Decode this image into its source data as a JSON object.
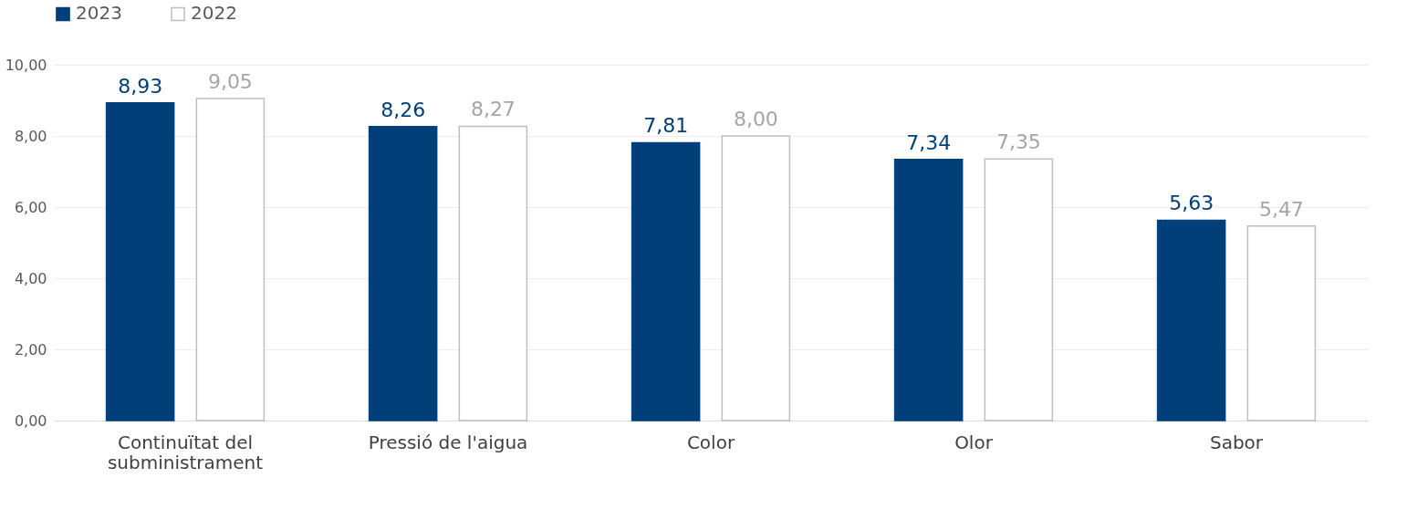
{
  "chart_data": {
    "type": "bar",
    "categories": [
      "Continuïtat del subministrament",
      "Pressió de l'aigua",
      "Color",
      "Olor",
      "Sabor"
    ],
    "series": [
      {
        "name": "2023",
        "color": "#003f7a",
        "values": [
          8.93,
          8.26,
          7.81,
          7.34,
          5.63
        ],
        "value_labels": [
          "8,93",
          "8,26",
          "7,81",
          "7,34",
          "5,63"
        ]
      },
      {
        "name": "2022",
        "color": "#ffffff",
        "values": [
          9.05,
          8.27,
          8.0,
          7.35,
          5.47
        ],
        "value_labels": [
          "9,05",
          "8,27",
          "8,00",
          "7,35",
          "5,47"
        ]
      }
    ],
    "ylim": [
      0,
      10
    ],
    "yticks": [
      {
        "value": 0,
        "label": "0,00"
      },
      {
        "value": 2,
        "label": "2,00"
      },
      {
        "value": 4,
        "label": "4,00"
      },
      {
        "value": 6,
        "label": "6,00"
      },
      {
        "value": 8,
        "label": "8,00"
      },
      {
        "value": 10,
        "label": "10,00"
      }
    ],
    "grid": "y",
    "legend": "top left"
  }
}
